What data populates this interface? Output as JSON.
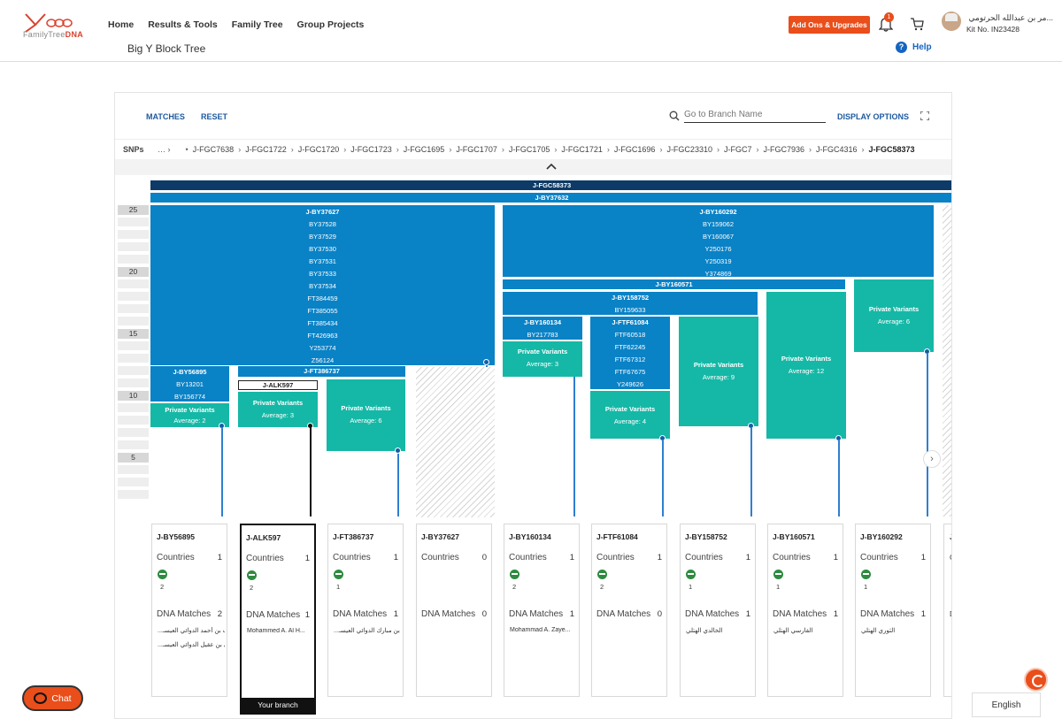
{
  "header": {
    "logo_text_a": "FamilyTree",
    "logo_text_b": "DNA",
    "nav": [
      "Home",
      "Results & Tools",
      "Family Tree",
      "Group Projects"
    ],
    "subtitle": "Big Y Block Tree",
    "addons_label": "Add Ons & Upgrades",
    "notification_count": "1",
    "user_name": "...مر بن عبدالله الحرتومي",
    "kit_number": "Kit No. IN23428",
    "help_label": "Help",
    "brand_color": "#e94e1b"
  },
  "toolbar": {
    "matches": "MATCHES",
    "reset": "RESET",
    "search_placeholder": "Go to Branch Name",
    "display_options": "DISPLAY OPTIONS"
  },
  "snps": {
    "label": "SNPs",
    "ellipsis": "…  ›",
    "crumbs": [
      "J-FGC7638",
      "J-FGC1722",
      "J-FGC1720",
      "J-FGC1723",
      "J-FGC1695",
      "J-FGC1707",
      "J-FGC1705",
      "J-FGC1721",
      "J-FGC1696",
      "J-FGC23310",
      "J-FGC7",
      "J-FGC7936",
      "J-FGC4316",
      "J-FGC58373"
    ]
  },
  "scale": [
    "25",
    "20",
    "15",
    "10",
    "5"
  ],
  "tree": {
    "top1": "J-FGC58373",
    "top2": "J-BY37632",
    "left_block": [
      "J-BY37627",
      "BY37528",
      "BY37529",
      "BY37530",
      "BY37531",
      "BY37533",
      "BY37534",
      "FT384459",
      "FT385055",
      "FT385434",
      "FT426963",
      "Y253774",
      "Z56124"
    ],
    "right_block": [
      "J-BY160292",
      "BY159062",
      "BY160067",
      "Y250176",
      "Y250319",
      "Y374869"
    ],
    "by160571": "J-BY160571",
    "by158752": [
      "J-BY158752",
      "BY159633"
    ],
    "by160134": [
      "J-BY160134",
      "BY217783"
    ],
    "ftf61084": [
      "J-FTF61084",
      "FTF60518",
      "FTF62245",
      "FTF67312",
      "FTF67675",
      "Y249626"
    ],
    "by56895": [
      "J-BY56895",
      "BY13201",
      "BY156774"
    ],
    "ft386737": "J-FT386737",
    "alk597": "J-ALK597",
    "pv_title": "Private Variants",
    "pv": {
      "a": "Average: 2",
      "b": "Average: 3",
      "c": "Average: 6",
      "d": "Average: 3",
      "e": "Average: 4",
      "f": "Average: 9",
      "g": "Average: 12",
      "h": "Average: 6"
    }
  },
  "cards": [
    {
      "title": "J-BY56895",
      "countries": "Countries",
      "ccount": "1",
      "flag_num": "2",
      "dna": "DNA Matches",
      "dcount": "2",
      "matches": [
        "...يت بن أحمد الدوائي العيسـ",
        "...لي بن عقيل الدوائي العيسـ"
      ]
    },
    {
      "title": "J-ALK597",
      "countries": "Countries",
      "ccount": "1",
      "flag_num": "2",
      "dna": "DNA Matches",
      "dcount": "1",
      "matches": [
        "Mohammed A. Al H..."
      ]
    },
    {
      "title": "J-FT386737",
      "countries": "Countries",
      "ccount": "1",
      "flag_num": "1",
      "dna": "DNA Matches",
      "dcount": "1",
      "matches": [
        "...ي بن مبارك الدوائي العيسـ"
      ]
    },
    {
      "title": "J-BY37627",
      "countries": "Countries",
      "ccount": "0",
      "flag_num": "",
      "dna": "DNA Matches",
      "dcount": "0",
      "matches": []
    },
    {
      "title": "J-BY160134",
      "countries": "Countries",
      "ccount": "1",
      "flag_num": "2",
      "dna": "DNA Matches",
      "dcount": "1",
      "matches": [
        "Mohammad A. Zaye..."
      ]
    },
    {
      "title": "J-FTF61084",
      "countries": "Countries",
      "ccount": "1",
      "flag_num": "2",
      "dna": "DNA Matches",
      "dcount": "0",
      "matches": []
    },
    {
      "title": "J-BY158752",
      "countries": "Countries",
      "ccount": "1",
      "flag_num": "1",
      "dna": "DNA Matches",
      "dcount": "1",
      "matches": [
        "الخالدي الهتلي"
      ]
    },
    {
      "title": "J-BY160571",
      "countries": "Countries",
      "ccount": "1",
      "flag_num": "1",
      "dna": "DNA Matches",
      "dcount": "1",
      "matches": [
        "الفارسي الهتلي"
      ]
    },
    {
      "title": "J-BY160292",
      "countries": "Countries",
      "ccount": "1",
      "flag_num": "1",
      "dna": "DNA Matches",
      "dcount": "1",
      "matches": [
        "الثوري الهتلي"
      ]
    }
  ],
  "stub": {
    "title": "J",
    "c": "C",
    "d": "D"
  },
  "your_branch": "Your branch",
  "chat_label": "Chat",
  "language": "English"
}
